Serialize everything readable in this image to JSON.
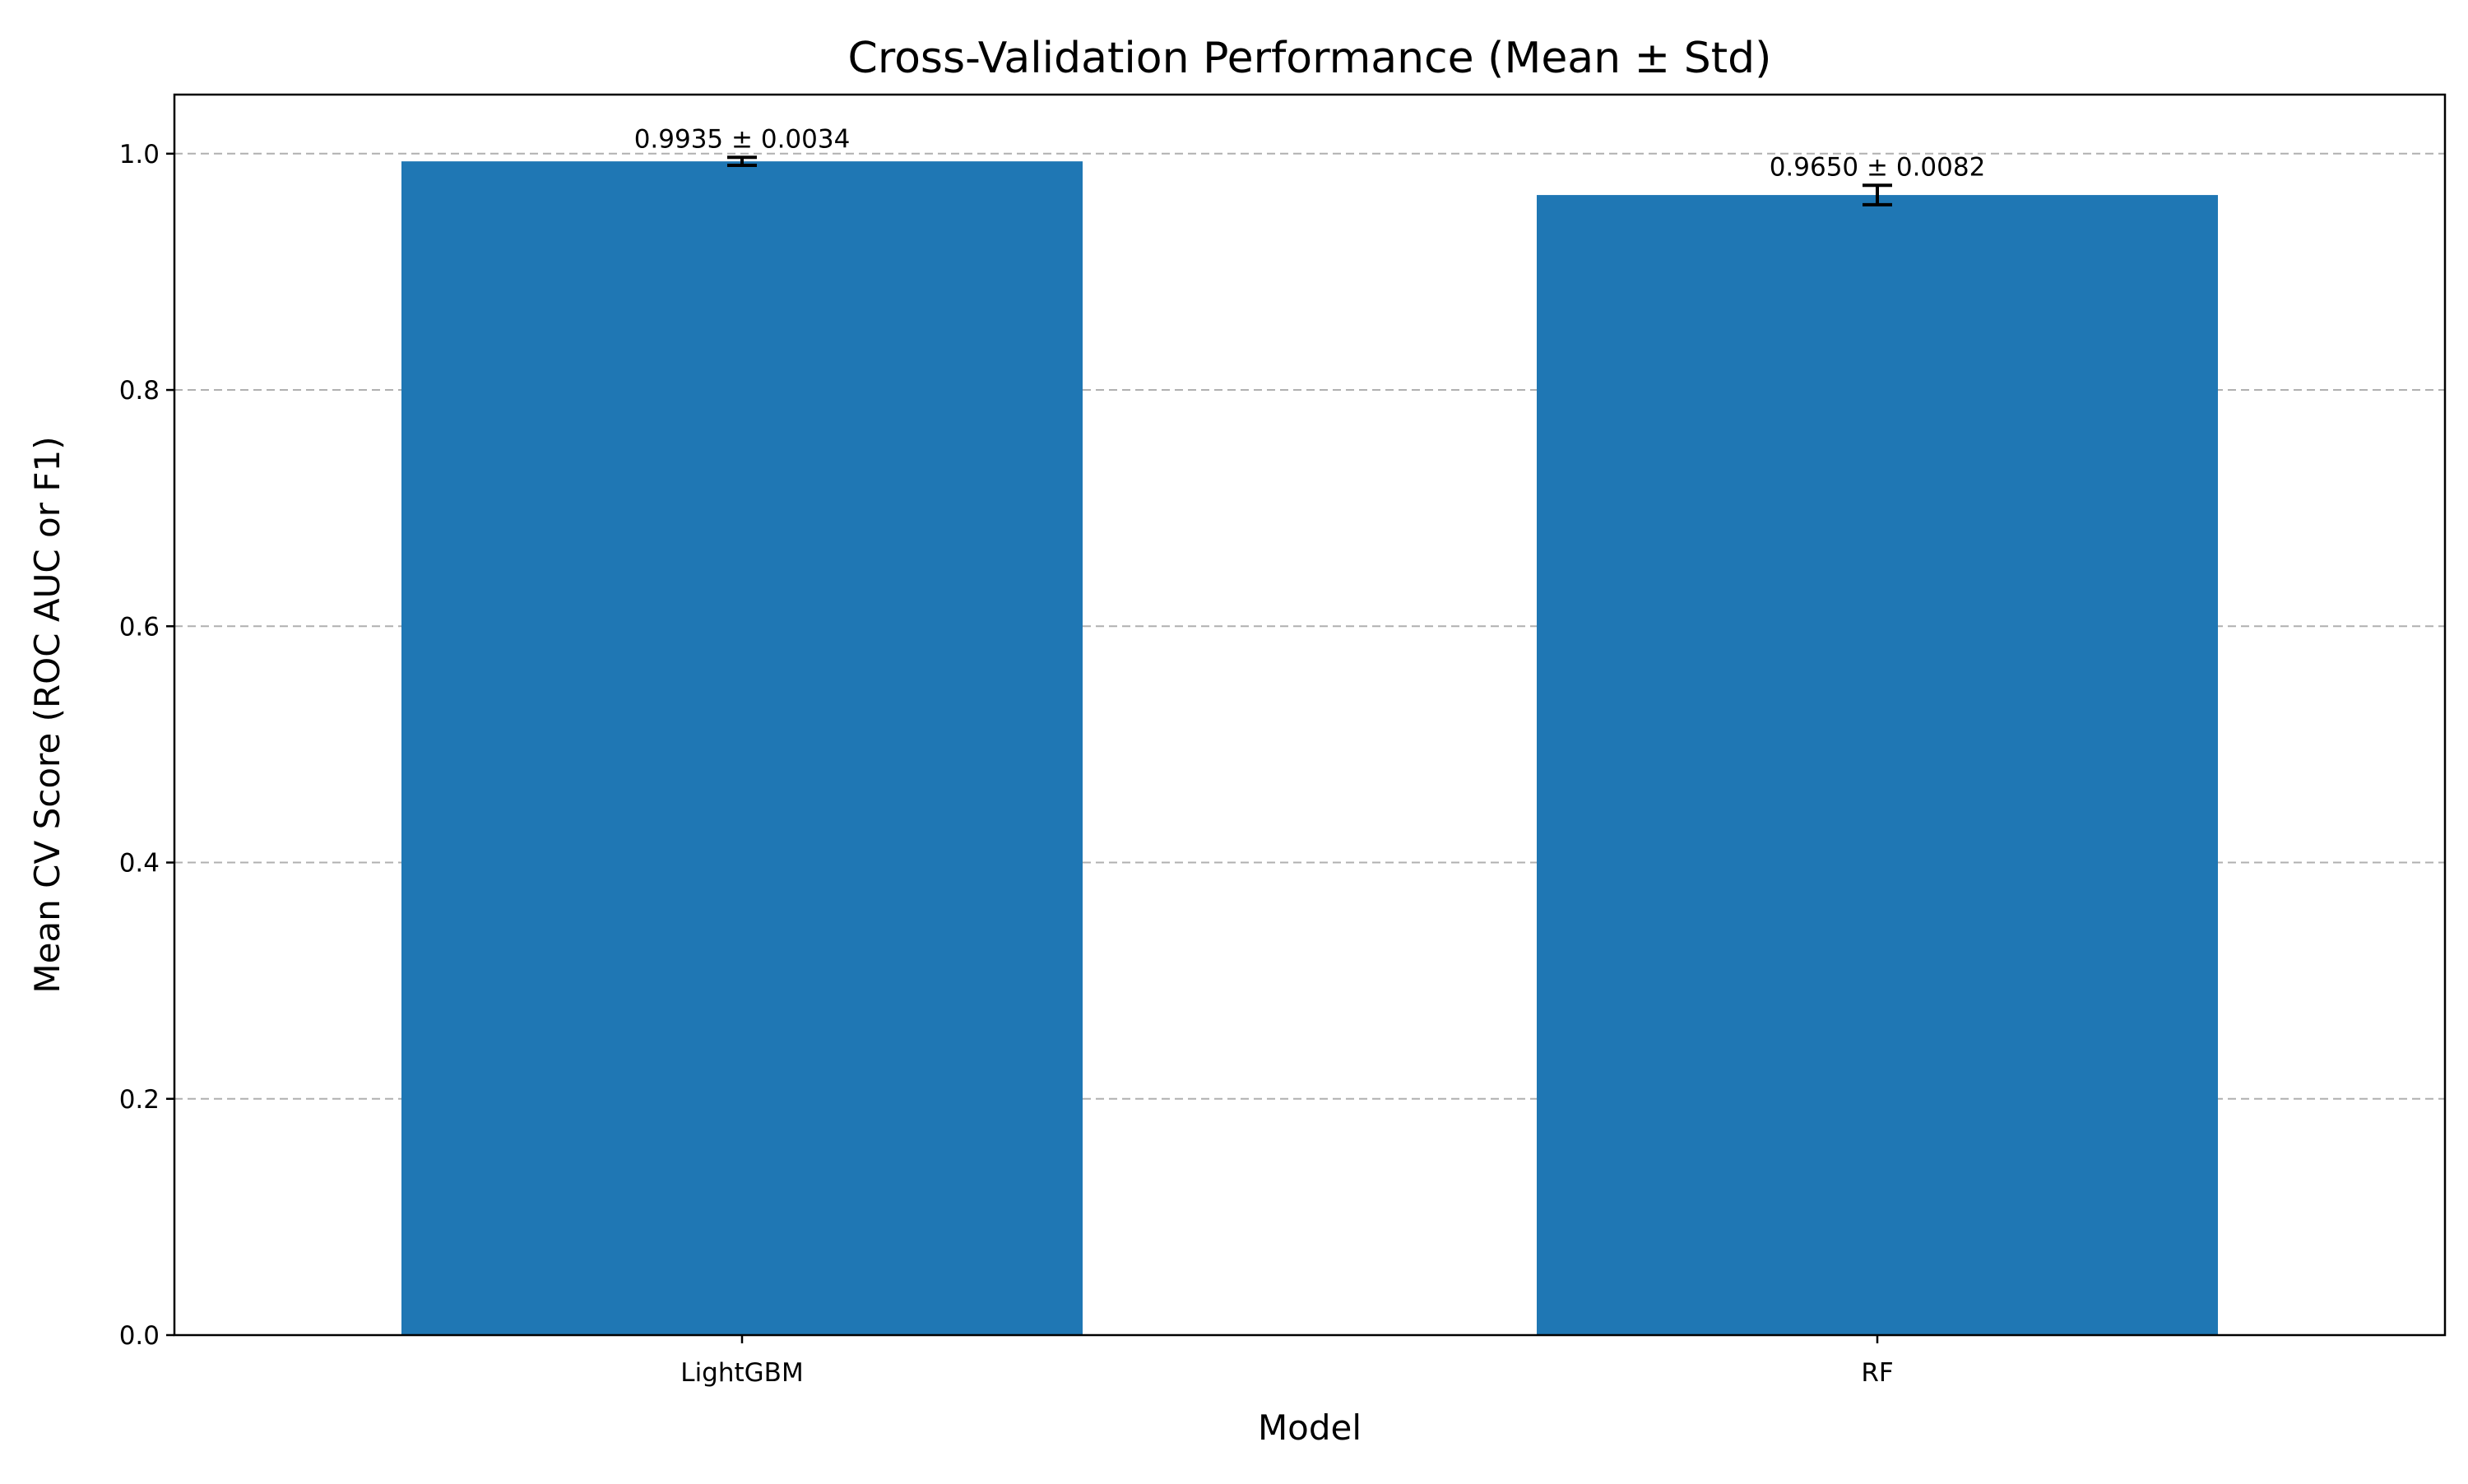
{
  "chart_data": {
    "type": "bar",
    "title": "Cross-Validation Performance (Mean ± Std)",
    "xlabel": "Model",
    "ylabel": "Mean CV Score (ROC AUC or F1)",
    "categories": [
      "LightGBM",
      "RF"
    ],
    "values": [
      0.9935,
      0.965
    ],
    "errors": [
      0.0034,
      0.0082
    ],
    "data_labels": [
      "0.9935 ± 0.0034",
      "0.9650 ± 0.0082"
    ],
    "ylim": [
      0,
      1.05
    ],
    "yticks": [
      0.0,
      0.2,
      0.4,
      0.6,
      0.8,
      1.0
    ],
    "ytick_labels": [
      "0.0",
      "0.2",
      "0.4",
      "0.6",
      "0.8",
      "1.0"
    ],
    "grid": "y-dashed",
    "legend": "none",
    "colors": {
      "bar": "#1f77b4",
      "error_bar": "#000000",
      "grid": "#b0b0b0"
    }
  }
}
